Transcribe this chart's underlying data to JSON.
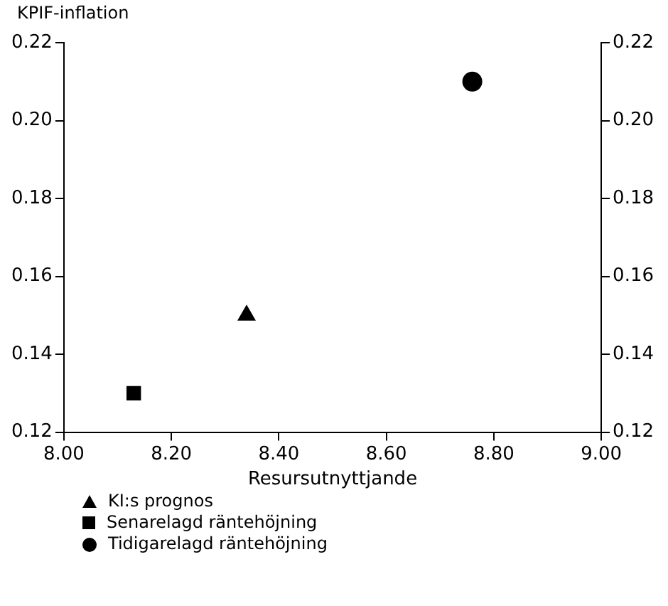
{
  "chart_data": {
    "type": "scatter",
    "ylabel": "KPIF-inflation",
    "xlabel": "Resursutnyttjande",
    "xlim": [
      8.0,
      9.0
    ],
    "xticks": [
      {
        "value": 8.0,
        "label": "8.00"
      },
      {
        "value": 8.2,
        "label": "8.20"
      },
      {
        "value": 8.4,
        "label": "8.40"
      },
      {
        "value": 8.6,
        "label": "8.60"
      },
      {
        "value": 8.8,
        "label": "8.80"
      },
      {
        "value": 9.0,
        "label": "9.00"
      }
    ],
    "ylim": [
      0.12,
      0.22
    ],
    "yticks": [
      {
        "value": 0.12,
        "label": "0.12"
      },
      {
        "value": 0.14,
        "label": "0.14"
      },
      {
        "value": 0.16,
        "label": "0.16"
      },
      {
        "value": 0.18,
        "label": "0.18"
      },
      {
        "value": 0.2,
        "label": "0.20"
      },
      {
        "value": 0.22,
        "label": "0.22"
      }
    ],
    "y2lim": [
      0.12,
      0.22
    ],
    "y2ticks": [
      {
        "value": 0.12,
        "label": "0.12"
      },
      {
        "value": 0.14,
        "label": "0.14"
      },
      {
        "value": 0.16,
        "label": "0.16"
      },
      {
        "value": 0.18,
        "label": "0.18"
      },
      {
        "value": 0.2,
        "label": "0.20"
      },
      {
        "value": 0.22,
        "label": "0.22"
      }
    ],
    "grid": false,
    "legend": "bottom left",
    "series": [
      {
        "name": "KI:s prognos",
        "color": "#000000",
        "x": [
          8.34
        ],
        "values": [
          0.15
        ],
        "marker": "triangle"
      },
      {
        "name": "Senarelagd räntehöjning",
        "color": "#000000",
        "x": [
          8.13
        ],
        "values": [
          0.13
        ],
        "marker": "square"
      },
      {
        "name": "Tidigarelagd räntehöjning",
        "color": "#000000",
        "x": [
          8.76
        ],
        "values": [
          0.21
        ],
        "marker": "circle"
      }
    ]
  }
}
